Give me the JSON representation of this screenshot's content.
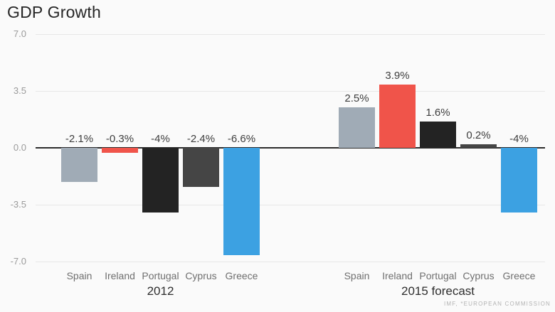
{
  "header": {
    "title": "GDP Growth"
  },
  "footer": {
    "source": "IMF, *EUROPEAN COMMISSION"
  },
  "chart_data": {
    "type": "bar",
    "title": "GDP Growth",
    "categories": [
      "Spain",
      "Ireland",
      "Portugal",
      "Cyprus",
      "Greece"
    ],
    "groups": [
      {
        "label": "2012",
        "values": [
          -2.1,
          -0.3,
          -4,
          -2.4,
          -6.6
        ],
        "value_labels": [
          "-2.1%",
          "-0.3%",
          "-4%",
          "-2.4%",
          "-6.6%"
        ]
      },
      {
        "label": "2015 forecast",
        "values": [
          2.5,
          3.9,
          1.6,
          0.2,
          -4
        ],
        "value_labels": [
          "2.5%",
          "3.9%",
          "1.6%",
          "0.2%",
          "-4%"
        ]
      }
    ],
    "bar_colors": [
      "#a0abb6",
      "#f0544a",
      "#232323",
      "#454545",
      "#3ca1e2"
    ],
    "y_ticks": [
      7.0,
      3.5,
      0.0,
      -3.5,
      -7.0
    ],
    "y_tick_labels": [
      "7.0",
      "3.5",
      "0.0",
      "-3.5",
      "-7.0"
    ],
    "ylim": [
      -7.0,
      7.0
    ],
    "grid": true,
    "legend": "none",
    "source": "IMF, *EUROPEAN COMMISSION",
    "colors": {
      "background": "#fafafa",
      "gridline": "#e7e7e7",
      "zero_axis": "#2d2d2d",
      "tick_text": "#9a9a9a",
      "value_text": "#3e3e3e",
      "category_text": "#6f6f6f",
      "group_text": "#2e2e2e"
    }
  }
}
